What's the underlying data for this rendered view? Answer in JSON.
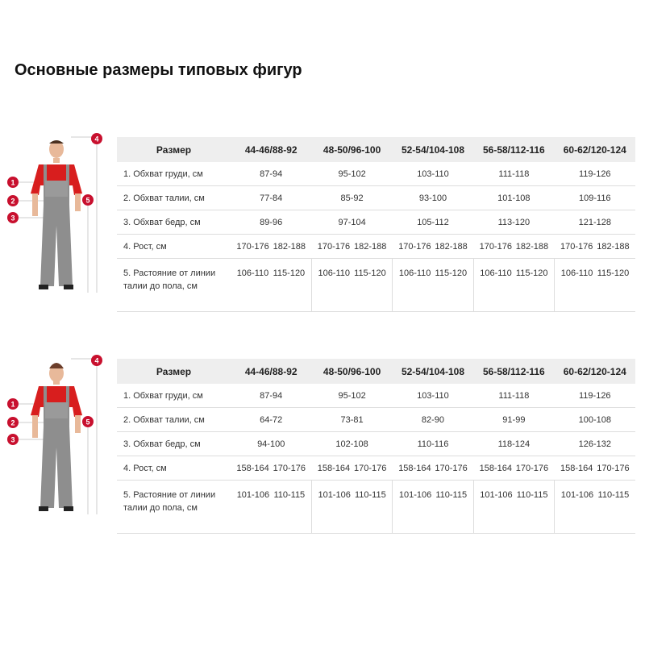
{
  "title": "Основные размеры типовых фигур",
  "colors": {
    "accent": "#c8102e",
    "header_bg": "#eeeeee"
  },
  "tables": [
    {
      "figure": "male-figure",
      "markers": [
        "1",
        "2",
        "3",
        "4",
        "5"
      ],
      "header": {
        "label": "Размер",
        "sizes": [
          "44-46/88-92",
          "48-50/96-100",
          "52-54/104-108",
          "56-58/112-116",
          "60-62/120-124"
        ]
      },
      "rows": [
        {
          "label": "1. Обхват груди, см",
          "values": [
            "87-94",
            "95-102",
            "103-110",
            "111-118",
            "119-126"
          ]
        },
        {
          "label": "2. Обхват талии, см",
          "values": [
            "77-84",
            "85-92",
            "93-100",
            "101-108",
            "109-116"
          ]
        },
        {
          "label": "3. Обхват бедр, см",
          "values": [
            "89-96",
            "97-104",
            "105-112",
            "113-120",
            "121-128"
          ]
        }
      ],
      "height": {
        "label": "4. Рост, см",
        "a": "170-176",
        "b": "182-188"
      },
      "distance": {
        "label1": "5. Растояние от линии",
        "label2": "талии до пола, см",
        "a": "106-110",
        "b": "115-120"
      }
    },
    {
      "figure": "female-figure",
      "markers": [
        "1",
        "2",
        "3",
        "4",
        "5"
      ],
      "header": {
        "label": "Размер",
        "sizes": [
          "44-46/88-92",
          "48-50/96-100",
          "52-54/104-108",
          "56-58/112-116",
          "60-62/120-124"
        ]
      },
      "rows": [
        {
          "label": "1. Обхват груди, см",
          "values": [
            "87-94",
            "95-102",
            "103-110",
            "111-118",
            "119-126"
          ]
        },
        {
          "label": "2. Обхват талии, см",
          "values": [
            "64-72",
            "73-81",
            "82-90",
            "91-99",
            "100-108"
          ]
        },
        {
          "label": "3. Обхват бедр, см",
          "values": [
            "94-100",
            "102-108",
            "110-116",
            "118-124",
            "126-132"
          ]
        }
      ],
      "height": {
        "label": "4. Рост, см",
        "a": "158-164",
        "b": "170-176"
      },
      "distance": {
        "label1": "5. Растояние от линии",
        "label2": "талии до пола, см",
        "a": "101-106",
        "b": "110-115"
      }
    }
  ]
}
